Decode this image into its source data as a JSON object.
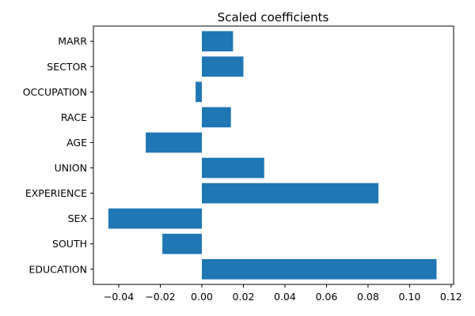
{
  "chart_data": {
    "type": "bar",
    "orientation": "horizontal",
    "title": "Scaled coefficients",
    "xlabel": "",
    "ylabel": "",
    "categories": [
      "EDUCATION",
      "SOUTH",
      "SEX",
      "EXPERIENCE",
      "UNION",
      "AGE",
      "RACE",
      "OCCUPATION",
      "SECTOR",
      "MARR"
    ],
    "values": [
      0.113,
      -0.019,
      -0.045,
      0.085,
      0.03,
      -0.027,
      0.014,
      -0.003,
      0.02,
      0.015
    ],
    "xlim": [
      -0.0522,
      0.1212
    ],
    "xticks": [
      -0.04,
      -0.02,
      0.0,
      0.02,
      0.04,
      0.06,
      0.08,
      0.1,
      0.12
    ],
    "xtick_labels": [
      "−0.04",
      "−0.02",
      "0.00",
      "0.02",
      "0.04",
      "0.06",
      "0.08",
      "0.10",
      "0.12"
    ],
    "grid": false,
    "bar_color": "#1f77b4"
  }
}
